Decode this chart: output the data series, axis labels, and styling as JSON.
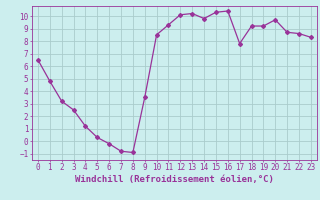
{
  "x": [
    0,
    1,
    2,
    3,
    4,
    5,
    6,
    7,
    8,
    9,
    10,
    11,
    12,
    13,
    14,
    15,
    16,
    17,
    18,
    19,
    20,
    21,
    22,
    23
  ],
  "y": [
    6.5,
    4.8,
    3.2,
    2.5,
    1.2,
    0.3,
    -0.2,
    -0.8,
    -0.9,
    3.5,
    8.5,
    9.3,
    10.1,
    10.2,
    9.8,
    10.3,
    10.4,
    7.8,
    9.2,
    9.2,
    9.7,
    8.7,
    8.6,
    8.3
  ],
  "color": "#993399",
  "bg_color": "#cceeee",
  "grid_color": "#aacccc",
  "xlabel": "Windchill (Refroidissement éolien,°C)",
  "xlim": [
    -0.5,
    23.5
  ],
  "ylim": [
    -1.5,
    10.8
  ],
  "yticks": [
    -1,
    0,
    1,
    2,
    3,
    4,
    5,
    6,
    7,
    8,
    9,
    10
  ],
  "xticks": [
    0,
    1,
    2,
    3,
    4,
    5,
    6,
    7,
    8,
    9,
    10,
    11,
    12,
    13,
    14,
    15,
    16,
    17,
    18,
    19,
    20,
    21,
    22,
    23
  ],
  "marker": "D",
  "markersize": 2,
  "linewidth": 0.9,
  "xlabel_fontsize": 6.5,
  "tick_fontsize": 5.5,
  "label_color": "#993399"
}
